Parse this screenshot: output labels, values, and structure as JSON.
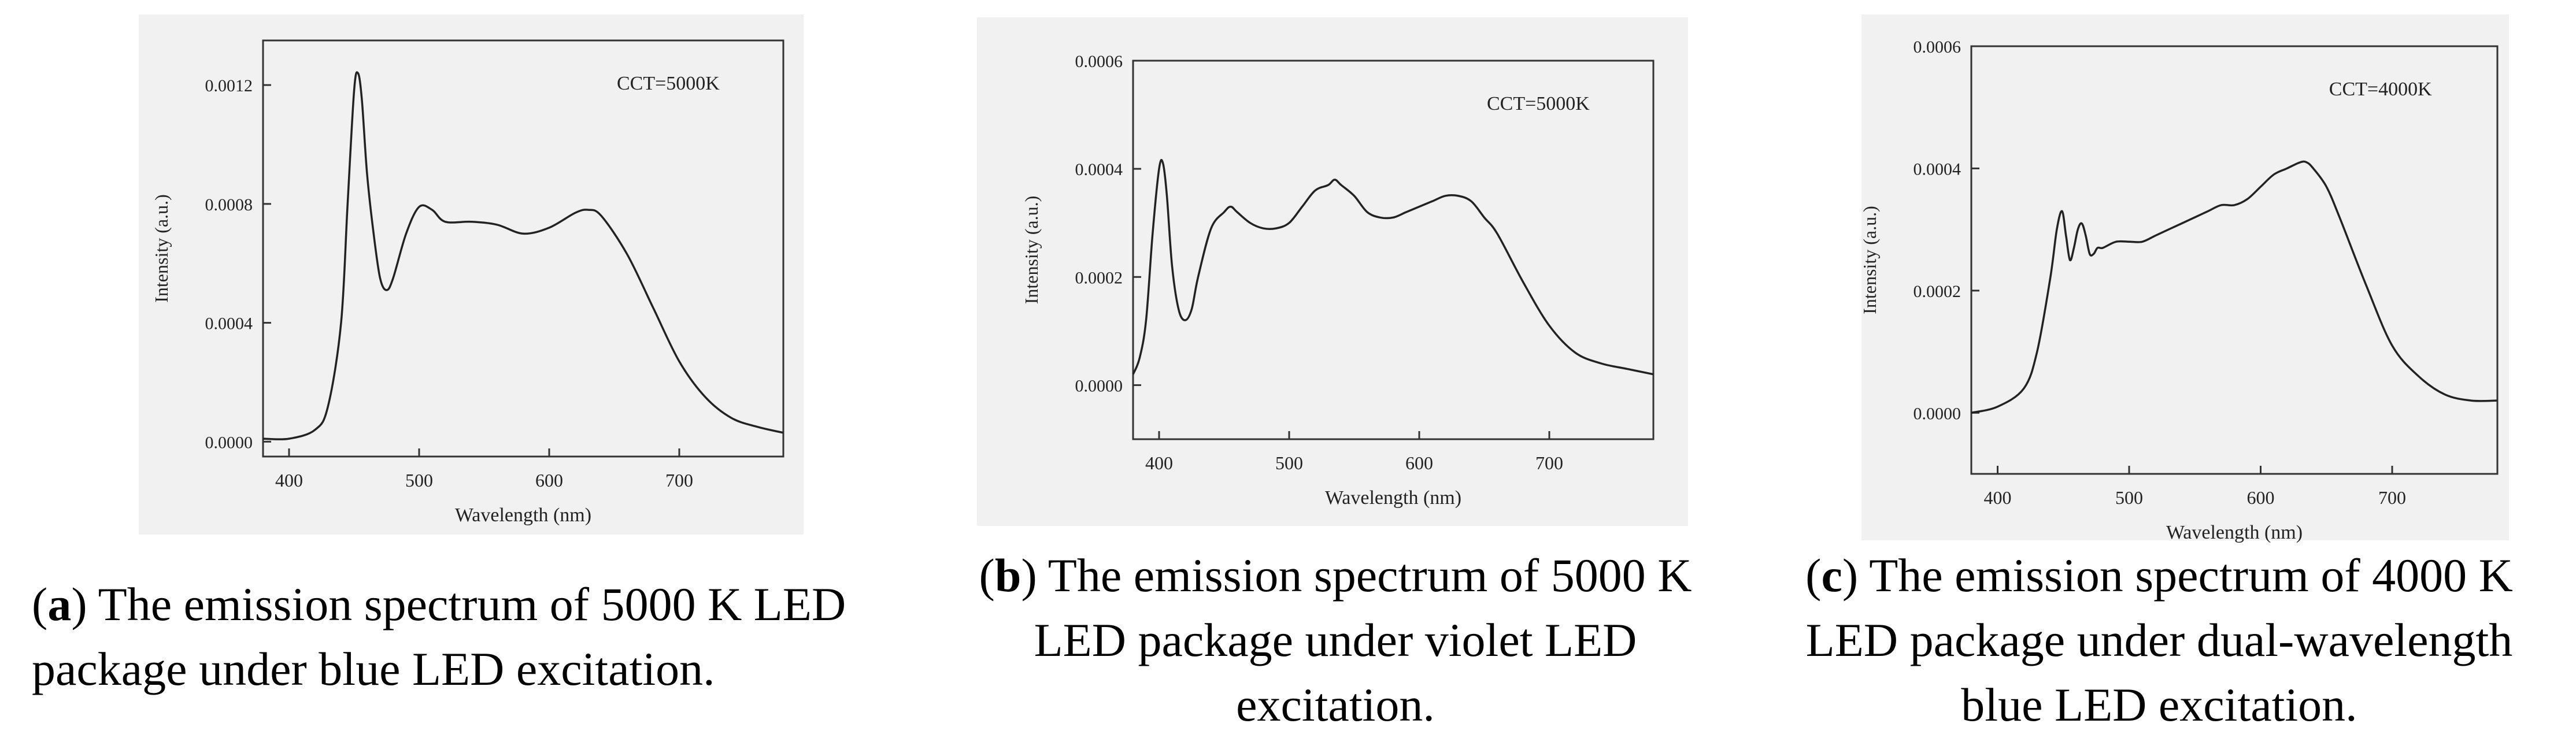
{
  "colors": {
    "line": "#222222",
    "panel_bg": "#f1f1f1",
    "axis": "#333333"
  },
  "captions": [
    {
      "letter": "a",
      "open": "(",
      "close": ")",
      "text": " The emission spectrum of 5000 K LED package under blue LED excitation."
    },
    {
      "letter": "b",
      "open": "(",
      "close": ")",
      "text": " The emission spectrum of 5000 K LED package under violet LED excitation."
    },
    {
      "letter": "c",
      "open": "(",
      "close": ")",
      "text": " The emission spectrum of 4000 K LED package under dual-wavelength blue LED excitation."
    }
  ],
  "chart_data": [
    {
      "type": "line",
      "title": "",
      "annotation": "CCT=5000K",
      "xlabel": "Wavelength (nm)",
      "ylabel": "Intensity (a.u.)",
      "xlim": [
        380,
        780
      ],
      "ylim": [
        -5e-05,
        0.00135
      ],
      "x_ticks": [
        400,
        500,
        600,
        700
      ],
      "y_ticks": [
        0,
        0.0004,
        0.0008,
        0.0012
      ],
      "y_tick_labels": [
        "0.0000",
        "0.0004",
        "0.0008",
        "0.0012"
      ],
      "grid": false,
      "series": [
        {
          "name": "5000 K, blue LED excitation",
          "x": [
            380,
            400,
            420,
            430,
            440,
            445,
            450,
            453,
            456,
            460,
            465,
            470,
            475,
            480,
            490,
            500,
            510,
            520,
            540,
            560,
            580,
            600,
            620,
            630,
            640,
            660,
            680,
            700,
            720,
            740,
            760,
            780
          ],
          "y": [
            1e-05,
            1e-05,
            4e-05,
            0.00012,
            0.0004,
            0.0008,
            0.00118,
            0.00124,
            0.00115,
            0.0009,
            0.0007,
            0.00055,
            0.00051,
            0.00055,
            0.0007,
            0.00079,
            0.00078,
            0.00074,
            0.00074,
            0.00073,
            0.0007,
            0.00072,
            0.00077,
            0.00078,
            0.00076,
            0.00063,
            0.00045,
            0.00027,
            0.00015,
            8e-05,
            5e-05,
            3e-05
          ]
        }
      ]
    },
    {
      "type": "line",
      "title": "",
      "annotation": "CCT=5000K",
      "xlabel": "Wavelength (nm)",
      "ylabel": "Intensity (a.u.)",
      "xlim": [
        380,
        780
      ],
      "ylim": [
        -0.0001,
        0.0006
      ],
      "x_ticks": [
        400,
        500,
        600,
        700
      ],
      "y_ticks": [
        0,
        0.0002,
        0.0004,
        0.0006
      ],
      "y_tick_labels": [
        "0.0000",
        "0.0002",
        "0.0004",
        "0.0006"
      ],
      "grid": false,
      "series": [
        {
          "name": "5000 K, violet LED excitation",
          "x": [
            380,
            385,
            390,
            395,
            400,
            403,
            406,
            410,
            415,
            420,
            425,
            430,
            440,
            450,
            455,
            460,
            470,
            480,
            490,
            500,
            510,
            520,
            530,
            535,
            540,
            550,
            560,
            570,
            580,
            590,
            600,
            610,
            620,
            630,
            640,
            650,
            660,
            680,
            700,
            720,
            740,
            760,
            780
          ],
          "y": [
            2e-05,
            5e-05,
            0.00012,
            0.00028,
            0.0004,
            0.00041,
            0.00035,
            0.00022,
            0.00014,
            0.00012,
            0.00014,
            0.0002,
            0.00029,
            0.00032,
            0.00033,
            0.00032,
            0.0003,
            0.00029,
            0.00029,
            0.0003,
            0.00033,
            0.00036,
            0.00037,
            0.00038,
            0.00037,
            0.00035,
            0.00032,
            0.00031,
            0.00031,
            0.00032,
            0.00033,
            0.00034,
            0.00035,
            0.00035,
            0.00034,
            0.00031,
            0.00028,
            0.00019,
            0.00011,
            6e-05,
            4e-05,
            3e-05,
            2e-05
          ]
        }
      ]
    },
    {
      "type": "line",
      "title": "",
      "annotation": "CCT=4000K",
      "xlabel": "Wavelength (nm)",
      "ylabel": "Intensity (a.u.)",
      "xlim": [
        380,
        780
      ],
      "ylim": [
        -0.0001,
        0.0006
      ],
      "x_ticks": [
        400,
        500,
        600,
        700
      ],
      "y_ticks": [
        0,
        0.0002,
        0.0004,
        0.0006
      ],
      "y_tick_labels": [
        "0.0000",
        "0.0002",
        "0.0004",
        "0.0006"
      ],
      "grid": false,
      "series": [
        {
          "name": "4000 K, dual-wavelength blue LED excitation",
          "x": [
            380,
            400,
            420,
            430,
            440,
            445,
            449,
            452,
            455,
            458,
            461,
            464,
            467,
            470,
            473,
            476,
            480,
            490,
            500,
            510,
            520,
            530,
            540,
            550,
            560,
            570,
            580,
            590,
            600,
            610,
            620,
            630,
            635,
            640,
            650,
            660,
            680,
            700,
            720,
            740,
            760,
            780
          ],
          "y": [
            0.0,
            1e-05,
            4e-05,
            0.0001,
            0.00022,
            0.0003,
            0.00033,
            0.00029,
            0.00025,
            0.00027,
            0.0003,
            0.00031,
            0.00029,
            0.00026,
            0.00026,
            0.00027,
            0.00027,
            0.00028,
            0.00028,
            0.00028,
            0.00029,
            0.0003,
            0.00031,
            0.00032,
            0.00033,
            0.00034,
            0.00034,
            0.00035,
            0.00037,
            0.00039,
            0.0004,
            0.00041,
            0.00041,
            0.0004,
            0.00037,
            0.00032,
            0.00021,
            0.00011,
            6e-05,
            3e-05,
            2e-05,
            2e-05
          ]
        }
      ]
    }
  ]
}
